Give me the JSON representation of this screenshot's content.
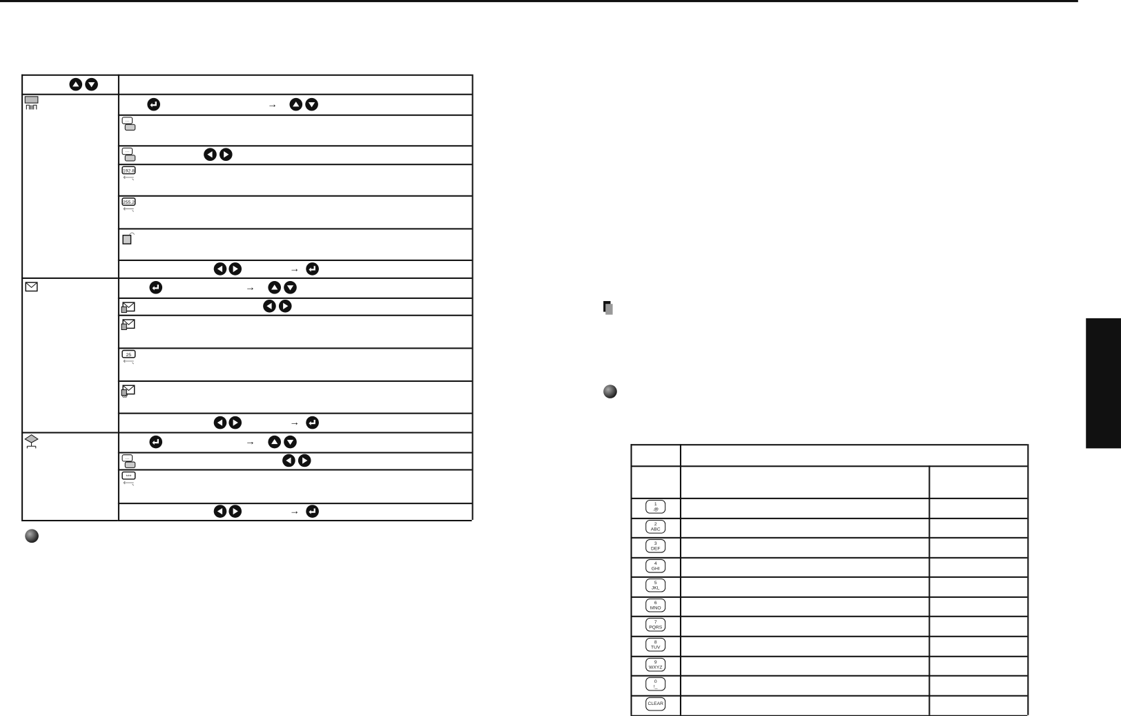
{
  "colors": {
    "ink": "#111111",
    "icon_gray": "#9a9a9a"
  },
  "left_table": {
    "header": {
      "buttons": [
        "up-button",
        "down-button"
      ]
    },
    "groups": [
      {
        "icon": "lan-icon",
        "rows": [
          {
            "icons": [],
            "buttons": [
              "enter-button",
              "arrow",
              "up-button",
              "down-button"
            ]
          },
          {
            "icons": [
              "projector-name-icon"
            ]
          },
          {
            "icons": [
              "network-devices-icon"
            ],
            "buttons": [
              "left-button",
              "right-button"
            ]
          },
          {
            "icons": [
              "ip-address-icon"
            ],
            "icon_text": "192.8"
          },
          {
            "icons": [
              "subnet-mask-icon"
            ],
            "icon_text": "255.2"
          },
          {
            "icons": [
              "gateway-icon"
            ]
          },
          {
            "buttons": [
              "left-button",
              "right-button",
              "arrow",
              "enter-button"
            ]
          }
        ]
      },
      {
        "icon": "mail-icon",
        "rows": [
          {
            "buttons": [
              "enter-button",
              "arrow",
              "up-button",
              "down-button"
            ]
          },
          {
            "icons": [
              "mail-notification-icon"
            ],
            "buttons": [
              "left-button",
              "right-button"
            ]
          },
          {
            "icons": [
              "mail-server-icon"
            ]
          },
          {
            "icons": [
              "smtp-port-icon"
            ],
            "icon_text": "25"
          },
          {
            "icons": [
              "email-address-icon"
            ]
          },
          {
            "buttons": [
              "left-button",
              "right-button",
              "arrow",
              "enter-button"
            ]
          }
        ]
      },
      {
        "icon": "network-tree-icon",
        "rows": [
          {
            "buttons": [
              "enter-button",
              "arrow",
              "up-button",
              "down-button"
            ]
          },
          {
            "icons": [
              "password-setting-icon"
            ],
            "buttons": [
              "left-button",
              "right-button"
            ]
          },
          {
            "icons": [
              "password-icon"
            ],
            "icon_text": "***"
          },
          {
            "buttons": [
              "left-button",
              "right-button",
              "arrow",
              "enter-button"
            ]
          }
        ]
      }
    ]
  },
  "right_table": {
    "keys": [
      {
        "num": "1",
        "chars": ".@"
      },
      {
        "num": "2",
        "chars": "ABC"
      },
      {
        "num": "3",
        "chars": "DEF"
      },
      {
        "num": "4",
        "chars": "GHI"
      },
      {
        "num": "5",
        "chars": "JKL"
      },
      {
        "num": "6",
        "chars": "MNO"
      },
      {
        "num": "7",
        "chars": "PQRS"
      },
      {
        "num": "8",
        "chars": "TUV"
      },
      {
        "num": "9",
        "chars": "WXYZ"
      },
      {
        "num": "0",
        "chars": "!_"
      },
      {
        "num": "",
        "chars": "CLEAR"
      }
    ]
  }
}
